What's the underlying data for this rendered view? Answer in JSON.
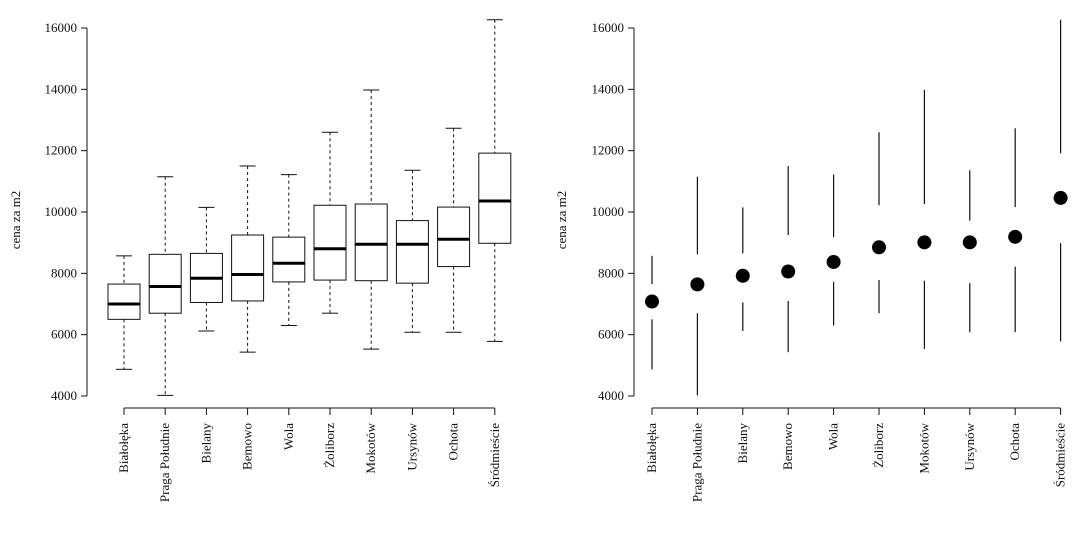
{
  "chart_data": [
    {
      "type": "boxplot",
      "ylabel": "cena za m2",
      "ylim": [
        4000,
        16000
      ],
      "yticks": [
        4000,
        6000,
        8000,
        10000,
        12000,
        14000,
        16000
      ],
      "categories": [
        "Białołęka",
        "Praga Południe",
        "Bielany",
        "Bemowo",
        "Wola",
        "Żoliborz",
        "Mokotów",
        "Ursynów",
        "Ochota",
        "Śródmieście"
      ],
      "boxes": [
        {
          "min": 4870,
          "q1": 6500,
          "median": 7000,
          "q3": 7650,
          "max": 8570
        },
        {
          "min": 4020,
          "q1": 6700,
          "median": 7570,
          "q3": 8620,
          "max": 11150
        },
        {
          "min": 6120,
          "q1": 7050,
          "median": 7840,
          "q3": 8650,
          "max": 10150
        },
        {
          "min": 5430,
          "q1": 7100,
          "median": 7960,
          "q3": 9250,
          "max": 11500
        },
        {
          "min": 6300,
          "q1": 7720,
          "median": 8330,
          "q3": 9180,
          "max": 11220
        },
        {
          "min": 6700,
          "q1": 7780,
          "median": 8800,
          "q3": 10220,
          "max": 12600
        },
        {
          "min": 5530,
          "q1": 7760,
          "median": 8950,
          "q3": 10260,
          "max": 13980
        },
        {
          "min": 6080,
          "q1": 7680,
          "median": 8950,
          "q3": 9720,
          "max": 11360
        },
        {
          "min": 6080,
          "q1": 8220,
          "median": 9110,
          "q3": 10160,
          "max": 12730
        },
        {
          "min": 5780,
          "q1": 8980,
          "median": 10360,
          "q3": 11920,
          "max": 16270
        }
      ]
    },
    {
      "type": "dot-range",
      "ylabel": "cena za m2",
      "ylim": [
        4000,
        16000
      ],
      "yticks": [
        4000,
        6000,
        8000,
        10000,
        12000,
        14000,
        16000
      ],
      "categories": [
        "Białołęka",
        "Praga Południe",
        "Bielany",
        "Bemowo",
        "Wola",
        "Żoliborz",
        "Mokotów",
        "Ursynów",
        "Ochota",
        "Śródmieście"
      ],
      "points": [
        {
          "min": 4870,
          "q1": 6500,
          "value": 7080,
          "q3": 7650,
          "max": 8570
        },
        {
          "min": 4020,
          "q1": 6700,
          "value": 7640,
          "q3": 8620,
          "max": 11150
        },
        {
          "min": 6120,
          "q1": 7050,
          "value": 7920,
          "q3": 8650,
          "max": 10150
        },
        {
          "min": 5430,
          "q1": 7100,
          "value": 8060,
          "q3": 9250,
          "max": 11500
        },
        {
          "min": 6300,
          "q1": 7720,
          "value": 8370,
          "q3": 9180,
          "max": 11220
        },
        {
          "min": 6700,
          "q1": 7780,
          "value": 8850,
          "q3": 10220,
          "max": 12600
        },
        {
          "min": 5530,
          "q1": 7760,
          "value": 9010,
          "q3": 10260,
          "max": 13980
        },
        {
          "min": 6080,
          "q1": 7680,
          "value": 9010,
          "q3": 9720,
          "max": 11360
        },
        {
          "min": 6080,
          "q1": 8220,
          "value": 9190,
          "q3": 10160,
          "max": 12730
        },
        {
          "min": 5780,
          "q1": 8980,
          "value": 10460,
          "q3": 11920,
          "max": 16270
        }
      ]
    }
  ]
}
